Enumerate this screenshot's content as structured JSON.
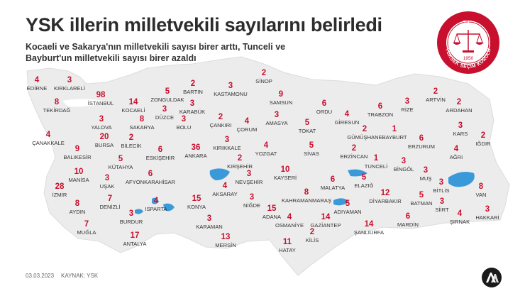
{
  "header": {
    "title": "YSK illerin milletvekili sayılarını belirledi",
    "subtitle": "Kocaeli ve Sakarya'nın milletvekili sayısı birer arttı, Tunceli ve Bayburt'un milletvekili sayısı birer azaldı"
  },
  "seal": {
    "top_text": "T.C.",
    "year": "1950",
    "ring_text": "YÜKSEK SEÇİM KURULU"
  },
  "footer": {
    "date": "03.03.2023",
    "source": "KAYNAK: YSK"
  },
  "colors": {
    "number": "#c8102e",
    "land": "#ececec",
    "border": "#ffffff",
    "water": "#3a9ad9"
  },
  "provinces": [
    {
      "name": "EDİRNE",
      "seats": "4"
    },
    {
      "name": "KIRKLARELİ",
      "seats": "3"
    },
    {
      "name": "TEKİRDAĞ",
      "seats": "8"
    },
    {
      "name": "İSTANBUL",
      "seats": "98"
    },
    {
      "name": "KOCAELİ",
      "seats": "14"
    },
    {
      "name": "ZONGULDAK",
      "seats": "5"
    },
    {
      "name": "BARTIN",
      "seats": "2"
    },
    {
      "name": "KASTAMONU",
      "seats": "3"
    },
    {
      "name": "SİNOP",
      "seats": "2"
    },
    {
      "name": "SAMSUN",
      "seats": "9"
    },
    {
      "name": "ORDU",
      "seats": "6"
    },
    {
      "name": "TRABZON",
      "seats": "6"
    },
    {
      "name": "RİZE",
      "seats": "3"
    },
    {
      "name": "ARTVİN",
      "seats": "2"
    },
    {
      "name": "ARDAHAN",
      "seats": "2"
    },
    {
      "name": "YALOVA",
      "seats": "3"
    },
    {
      "name": "SAKARYA",
      "seats": "8"
    },
    {
      "name": "DÜZCE",
      "seats": "3"
    },
    {
      "name": "KARABÜK",
      "seats": "3"
    },
    {
      "name": "BOLU",
      "seats": "3"
    },
    {
      "name": "ÇANKIRI",
      "seats": "2"
    },
    {
      "name": "ÇORUM",
      "seats": "4"
    },
    {
      "name": "AMASYA",
      "seats": "3"
    },
    {
      "name": "TOKAT",
      "seats": "5"
    },
    {
      "name": "GİRESUN",
      "seats": "4"
    },
    {
      "name": "GÜMÜŞHANE",
      "seats": "2"
    },
    {
      "name": "BAYBURT",
      "seats": "1"
    },
    {
      "name": "KARS",
      "seats": "3"
    },
    {
      "name": "IĞDIR",
      "seats": "2"
    },
    {
      "name": "ÇANAKKALE",
      "seats": "4"
    },
    {
      "name": "BURSA",
      "seats": "20"
    },
    {
      "name": "BİLECİK",
      "seats": "2"
    },
    {
      "name": "ESKİŞEHİR",
      "seats": "6"
    },
    {
      "name": "ANKARA",
      "seats": "36"
    },
    {
      "name": "KIRIKKALE",
      "seats": "3"
    },
    {
      "name": "YOZGAT",
      "seats": "4"
    },
    {
      "name": "SİVAS",
      "seats": "5"
    },
    {
      "name": "ERZİNCAN",
      "seats": "2"
    },
    {
      "name": "ERZURUM",
      "seats": "6"
    },
    {
      "name": "AĞRI",
      "seats": "4"
    },
    {
      "name": "BALIKESİR",
      "seats": "9"
    },
    {
      "name": "KÜTAHYA",
      "seats": "5"
    },
    {
      "name": "KIRŞEHİR",
      "seats": "2"
    },
    {
      "name": "TUNCELİ",
      "seats": "1"
    },
    {
      "name": "BİNGÖL",
      "seats": "3"
    },
    {
      "name": "MANİSA",
      "seats": "10"
    },
    {
      "name": "UŞAK",
      "seats": "3"
    },
    {
      "name": "AFYONKARAHİSAR",
      "seats": "6"
    },
    {
      "name": "NEVŞEHİR",
      "seats": "3"
    },
    {
      "name": "KAYSERİ",
      "seats": "10"
    },
    {
      "name": "MUŞ",
      "seats": "3"
    },
    {
      "name": "İZMİR",
      "seats": "28"
    },
    {
      "name": "AKSARAY",
      "seats": "4"
    },
    {
      "name": "MALATYA",
      "seats": "6"
    },
    {
      "name": "ELAZIĞ",
      "seats": "5"
    },
    {
      "name": "BİTLİS",
      "seats": "3"
    },
    {
      "name": "VAN",
      "seats": "8"
    },
    {
      "name": "AYDIN",
      "seats": "8"
    },
    {
      "name": "DENİZLİ",
      "seats": "7"
    },
    {
      "name": "ISPARTA",
      "seats": "4"
    },
    {
      "name": "KONYA",
      "seats": "15"
    },
    {
      "name": "NİĞDE",
      "seats": "3"
    },
    {
      "name": "KAHRAMANMARAŞ",
      "seats": "8"
    },
    {
      "name": "DİYARBAKIR",
      "seats": "12"
    },
    {
      "name": "BATMAN",
      "seats": "5"
    },
    {
      "name": "SİİRT",
      "seats": "3"
    },
    {
      "name": "BURDUR",
      "seats": "3"
    },
    {
      "name": "ADANA",
      "seats": "15"
    },
    {
      "name": "ADIYAMAN",
      "seats": "5"
    },
    {
      "name": "ŞIRNAK",
      "seats": "4"
    },
    {
      "name": "HAKKARİ",
      "seats": "3"
    },
    {
      "name": "MUĞLA",
      "seats": "7"
    },
    {
      "name": "KARAMAN",
      "seats": "3"
    },
    {
      "name": "OSMANİYE",
      "seats": "4"
    },
    {
      "name": "GAZİANTEP",
      "seats": "14"
    },
    {
      "name": "ŞANLIURFA",
      "seats": "14"
    },
    {
      "name": "MARDİN",
      "seats": "6"
    },
    {
      "name": "ANTALYA",
      "seats": "17"
    },
    {
      "name": "MERSİN",
      "seats": "13"
    },
    {
      "name": "KİLİS",
      "seats": "2"
    },
    {
      "name": "HATAY",
      "seats": "11"
    }
  ]
}
